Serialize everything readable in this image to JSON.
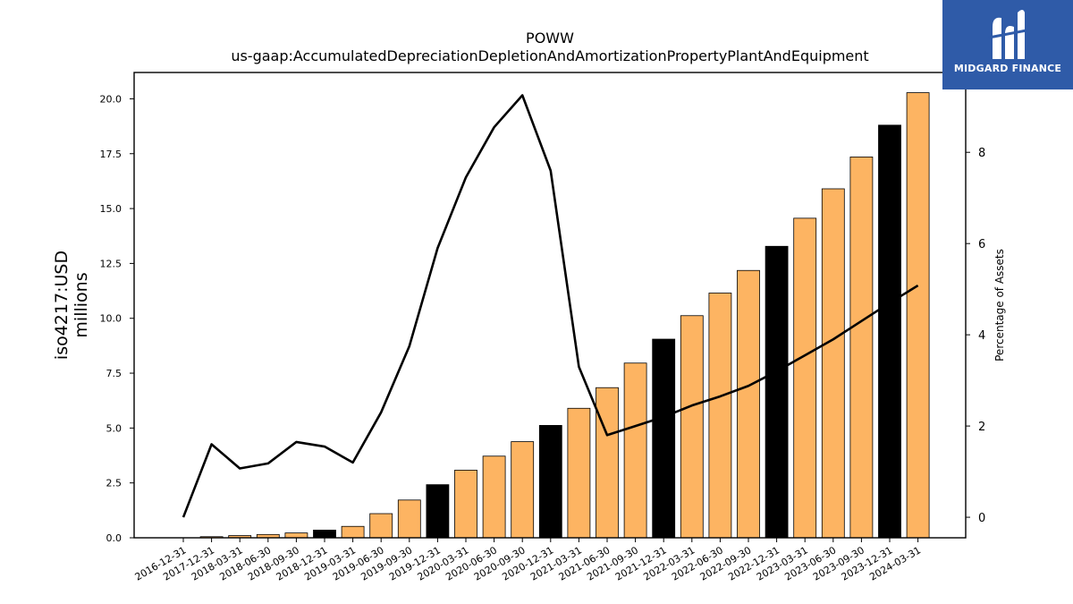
{
  "chart_data": {
    "type": "bar",
    "title": "POWW",
    "subtitle": "us-gaap:AccumulatedDepreciationDepletionAndAmortizationPropertyPlantAndEquipment",
    "ylabel_line1": "iso4217:USD",
    "ylabel_line2": "millions",
    "y2label": "Percentage of Assets",
    "categories": [
      "2016-12-31",
      "2017-12-31",
      "2018-03-31",
      "2018-06-30",
      "2018-09-30",
      "2018-12-31",
      "2019-03-31",
      "2019-06-30",
      "2019-09-30",
      "2019-12-31",
      "2020-03-31",
      "2020-06-30",
      "2020-09-30",
      "2020-12-31",
      "2021-03-31",
      "2021-06-30",
      "2021-09-30",
      "2021-12-31",
      "2022-03-31",
      "2022-06-30",
      "2022-09-30",
      "2022-12-31",
      "2023-03-31",
      "2023-06-30",
      "2023-09-30",
      "2023-12-31",
      "2024-03-31"
    ],
    "series": [
      {
        "kind": "bar",
        "values": [
          0.0,
          0.05,
          0.1,
          0.15,
          0.22,
          0.35,
          0.52,
          1.1,
          1.72,
          2.42,
          3.08,
          3.72,
          4.38,
          5.12,
          5.9,
          6.84,
          7.96,
          9.05,
          10.12,
          11.15,
          12.18,
          13.28,
          14.56,
          15.9,
          17.35,
          18.8,
          20.28
        ],
        "highlight": [
          false,
          false,
          false,
          false,
          false,
          true,
          false,
          false,
          false,
          true,
          false,
          false,
          false,
          true,
          false,
          false,
          false,
          true,
          false,
          false,
          false,
          true,
          false,
          false,
          false,
          true,
          false
        ]
      },
      {
        "kind": "line",
        "axis": "right",
        "values": [
          0.0,
          1.6,
          1.07,
          1.18,
          1.65,
          1.55,
          1.2,
          2.3,
          3.75,
          5.9,
          7.45,
          8.55,
          9.25,
          7.6,
          3.3,
          1.8,
          2.0,
          2.2,
          2.45,
          2.65,
          2.88,
          3.2,
          3.55,
          3.9,
          4.3,
          4.7,
          5.08
        ]
      }
    ],
    "ylim": [
      0,
      21.2
    ],
    "y2lim": [
      -0.45,
      9.75
    ],
    "yticks": [
      "0.0",
      "2.5",
      "5.0",
      "7.5",
      "10.0",
      "12.5",
      "15.0",
      "17.5",
      "20.0"
    ],
    "y2ticks": [
      "0",
      "2",
      "4",
      "6",
      "8"
    ],
    "colors": {
      "bar": "#fdb462",
      "bar_highlight": "#000000",
      "line": "#000000"
    },
    "grid": false
  },
  "logo": {
    "text": "MIDGARD FINANCE",
    "color": "#2f5ba8"
  }
}
